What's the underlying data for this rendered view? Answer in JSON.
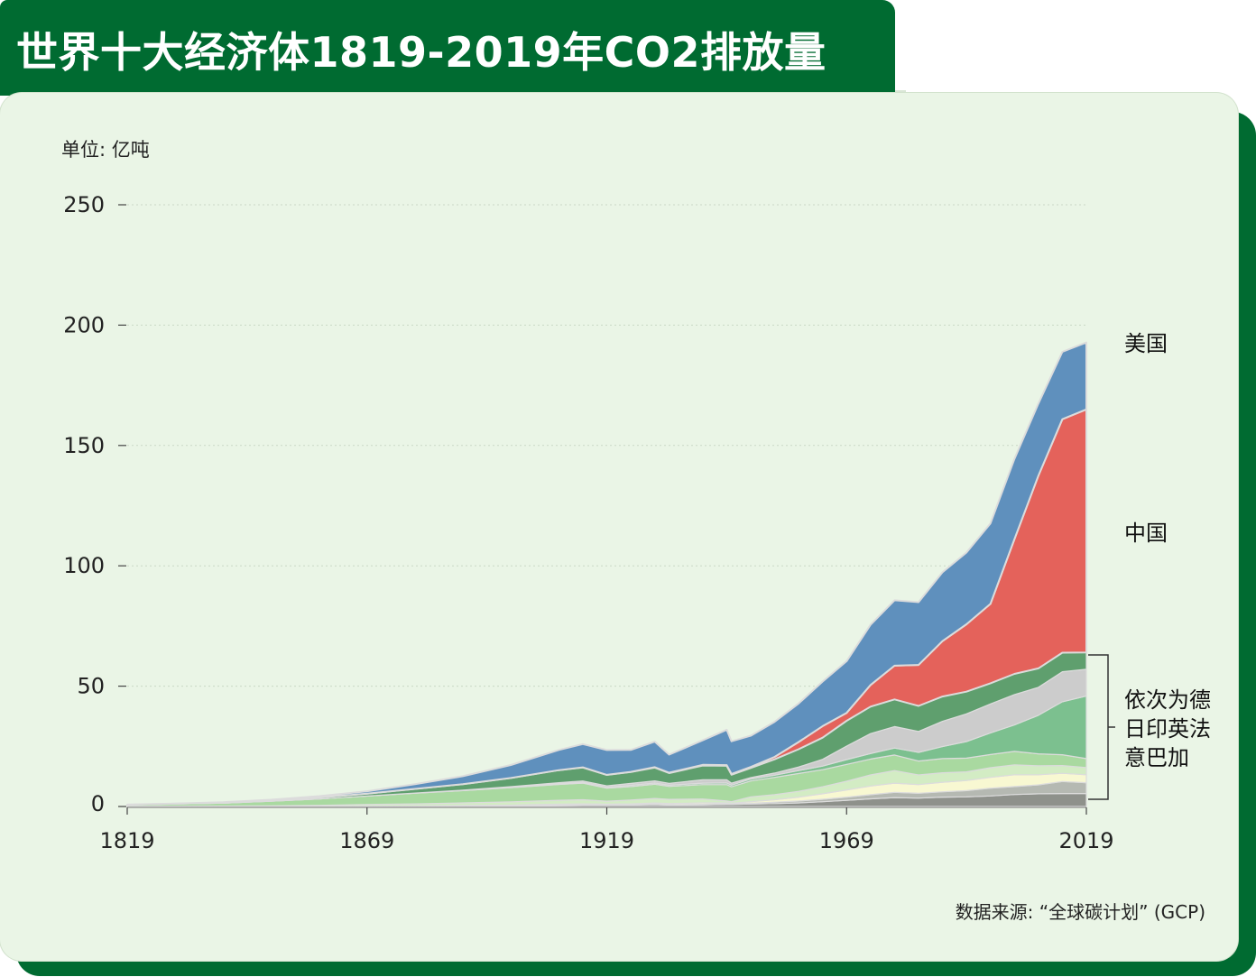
{
  "title": "世界十大经济体1819-2019年CO2排放量",
  "unit_label": "单位: 亿吨",
  "source": "数据来源: “全球碳计划” (GCP)",
  "colors": {
    "brand_green": "#006b31",
    "card_bg": "#eaf5e6",
    "usa": "#5f90bd",
    "china": "#e4625b",
    "germany": "#5f9f6e",
    "india": "#7cc08f",
    "uk": "#a9d9a0",
    "france": "#d3ecc4",
    "italy": "#f8f8d2",
    "brazil": "#b5b9b2",
    "canada": "#8e918b"
  },
  "chart_data": {
    "type": "area",
    "stacked": true,
    "title": "世界十大经济体1819-2019年CO2排放量",
    "ylabel": "单位: 亿吨",
    "xlabel": "",
    "xlim": [
      1819,
      2019
    ],
    "ylim": [
      0,
      250
    ],
    "x_ticks": [
      "1819",
      "1869",
      "1919",
      "1969",
      "2019"
    ],
    "y_ticks": [
      "0",
      "50",
      "100",
      "150",
      "200",
      "250"
    ],
    "grid": "horizontal dotted",
    "legend": "right side labels",
    "group_label": "依次为德日印英法意巴加",
    "x": [
      1819,
      1829,
      1839,
      1849,
      1859,
      1869,
      1879,
      1889,
      1899,
      1909,
      1914,
      1919,
      1924,
      1929,
      1932,
      1939,
      1944,
      1945,
      1949,
      1954,
      1959,
      1964,
      1969,
      1974,
      1979,
      1984,
      1989,
      1994,
      1999,
      2004,
      2009,
      2014,
      2019
    ],
    "series": [
      {
        "name": "",
        "color_key": "canada",
        "values": [
          0,
          0,
          0,
          0,
          0,
          0.05,
          0.1,
          0.2,
          0.3,
          0.5,
          0.6,
          0.6,
          0.6,
          0.8,
          0.6,
          0.7,
          0.9,
          0.9,
          1.0,
          1.2,
          1.5,
          2.0,
          2.6,
          3.2,
          3.7,
          3.5,
          3.9,
          4.0,
          4.4,
          5.0,
          5.3,
          5.4,
          5.4
        ]
      },
      {
        "name": "",
        "color_key": "brazil",
        "values": [
          0,
          0,
          0,
          0,
          0,
          0,
          0,
          0,
          0.05,
          0.1,
          0.1,
          0.1,
          0.1,
          0.15,
          0.15,
          0.2,
          0.3,
          0.3,
          0.4,
          0.6,
          0.8,
          1.0,
          1.3,
          1.7,
          2.2,
          2.0,
          2.2,
          2.6,
          3.2,
          3.3,
          3.7,
          5.0,
          4.5
        ]
      },
      {
        "name": "",
        "color_key": "italy",
        "values": [
          0,
          0,
          0,
          0,
          0,
          0.1,
          0.1,
          0.2,
          0.2,
          0.4,
          0.4,
          0.3,
          0.4,
          0.5,
          0.5,
          0.6,
          0.3,
          0.2,
          0.6,
          1.0,
          1.6,
          2.3,
          3.0,
          3.6,
          3.8,
          3.6,
          4.0,
          4.2,
          4.5,
          4.9,
          4.2,
          3.4,
          3.3
        ]
      },
      {
        "name": "",
        "color_key": "france",
        "values": [
          0.1,
          0.15,
          0.2,
          0.3,
          0.5,
          0.7,
          0.9,
          1.1,
          1.4,
          1.6,
          1.7,
          1.2,
          1.6,
          1.9,
          1.7,
          1.6,
          0.8,
          0.6,
          2.0,
          2.1,
          2.4,
          2.9,
          3.6,
          4.6,
          5.2,
          4.0,
          3.9,
          3.6,
          4.0,
          4.1,
          3.7,
          3.2,
          3.0
        ]
      },
      {
        "name": "",
        "color_key": "uk",
        "values": [
          0.6,
          0.9,
          1.2,
          1.9,
          2.6,
          3.5,
          4.4,
          5.1,
          5.9,
          6.6,
          6.9,
          5.4,
          5.6,
          5.9,
          5.4,
          6.0,
          6.8,
          6.2,
          6.6,
          7.2,
          7.4,
          7.1,
          7.0,
          6.6,
          6.5,
          5.8,
          5.9,
          5.7,
          5.5,
          5.6,
          5.0,
          4.5,
          3.7
        ]
      },
      {
        "name": "",
        "color_key": "india",
        "values": [
          0,
          0,
          0,
          0,
          0,
          0,
          0.05,
          0.1,
          0.2,
          0.3,
          0.4,
          0.4,
          0.5,
          0.5,
          0.5,
          0.6,
          0.7,
          0.7,
          0.8,
          0.9,
          1.2,
          1.5,
          2.0,
          2.3,
          2.9,
          3.6,
          5.0,
          6.9,
          9.0,
          11.0,
          16.0,
          22.0,
          26.0
        ]
      },
      {
        "name": "",
        "color_key": "japan",
        "values": [
          0,
          0,
          0,
          0,
          0,
          0,
          0.05,
          0.1,
          0.2,
          0.4,
          0.5,
          0.6,
          0.8,
          0.9,
          0.8,
          1.4,
          1.3,
          0.8,
          0.6,
          0.9,
          1.5,
          2.8,
          5.6,
          8.3,
          8.9,
          8.7,
          10.5,
          11.5,
          12.0,
          12.6,
          11.6,
          12.5,
          11.1
        ]
      },
      {
        "name": "",
        "color_key": "germany",
        "values": [
          0.05,
          0.1,
          0.2,
          0.3,
          0.6,
          1.0,
          1.7,
          2.5,
          3.6,
          5.2,
          5.6,
          4.5,
          4.7,
          5.5,
          4.2,
          5.9,
          5.8,
          3.5,
          4.0,
          5.7,
          7.4,
          9.0,
          10.5,
          11.2,
          11.3,
          10.6,
          10.3,
          9.2,
          8.6,
          8.6,
          7.9,
          7.9,
          7.0
        ]
      },
      {
        "name": "中国",
        "color_key": "china",
        "values": [
          0,
          0,
          0,
          0,
          0,
          0,
          0,
          0,
          0,
          0,
          0.05,
          0.05,
          0.1,
          0.2,
          0.2,
          0.3,
          0.3,
          0.3,
          0.4,
          1.0,
          3.0,
          4.8,
          3.3,
          9.0,
          14.0,
          17.0,
          23.0,
          28.0,
          33.0,
          56.0,
          80.0,
          97.0,
          101.0
        ]
      },
      {
        "name": "美国",
        "color_key": "usa",
        "values": [
          0.05,
          0.1,
          0.2,
          0.3,
          0.6,
          1.0,
          2.0,
          3.3,
          5.4,
          8.4,
          9.7,
          10.3,
          9.1,
          10.6,
          7.5,
          10.2,
          14.7,
          13.6,
          13.0,
          14.6,
          16.0,
          18.5,
          21.5,
          25.0,
          27.2,
          26.1,
          28.6,
          29.8,
          33.4,
          33.3,
          30.0,
          28.0,
          27.8
        ]
      }
    ]
  }
}
